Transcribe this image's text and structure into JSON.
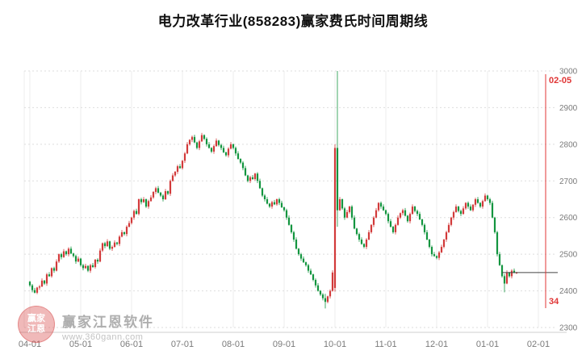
{
  "title": "电力改革行业(858283)赢家费氏时间周期线",
  "watermark": {
    "logo_text_top": "赢家",
    "logo_text_bottom": "江恩",
    "name": "赢家江恩软件",
    "url": "www.360gann.com"
  },
  "chart_data": {
    "type": "candlestick",
    "title": "电力改革行业(858283)赢家费氏时间周期线",
    "x_tick_labels": [
      "04-01",
      "05-01",
      "06-01",
      "07-01",
      "08-01",
      "09-01",
      "10-01",
      "11-01",
      "12-01",
      "01-01",
      "02-01"
    ],
    "x_tick_indices": [
      0,
      21,
      42,
      63,
      84,
      105,
      126,
      147,
      168,
      189,
      210
    ],
    "y_ticks": [
      2300,
      2400,
      2500,
      2600,
      2700,
      2800,
      2900,
      3000
    ],
    "ylim": [
      2300,
      3000
    ],
    "grid": true,
    "legend": "none",
    "first_open": 2425,
    "closes": [
      2415,
      2402,
      2395,
      2409,
      2412,
      2428,
      2420,
      2445,
      2440,
      2462,
      2455,
      2480,
      2500,
      2492,
      2508,
      2500,
      2515,
      2502,
      2495,
      2480,
      2488,
      2470,
      2462,
      2468,
      2455,
      2470,
      2465,
      2485,
      2480,
      2510,
      2530,
      2522,
      2535,
      2515,
      2520,
      2532,
      2528,
      2548,
      2560,
      2555,
      2575,
      2585,
      2600,
      2618,
      2610,
      2650,
      2642,
      2650,
      2630,
      2645,
      2655,
      2670,
      2680,
      2668,
      2660,
      2650,
      2672,
      2665,
      2700,
      2715,
      2725,
      2740,
      2735,
      2755,
      2775,
      2800,
      2812,
      2820,
      2805,
      2790,
      2808,
      2825,
      2815,
      2800,
      2790,
      2780,
      2795,
      2810,
      2798,
      2790,
      2778,
      2770,
      2788,
      2800,
      2790,
      2775,
      2760,
      2750,
      2735,
      2715,
      2700,
      2710,
      2705,
      2720,
      2700,
      2680,
      2660,
      2650,
      2638,
      2630,
      2642,
      2636,
      2650,
      2640,
      2628,
      2620,
      2600,
      2580,
      2560,
      2540,
      2515,
      2500,
      2488,
      2478,
      2470,
      2455,
      2445,
      2430,
      2415,
      2400,
      2390,
      2380,
      2370,
      2385,
      2400,
      2450,
      2790,
      2620,
      2650,
      2625,
      2600,
      2615,
      2630,
      2600,
      2570,
      2555,
      2540,
      2528,
      2520,
      2540,
      2560,
      2580,
      2600,
      2620,
      2640,
      2630,
      2620,
      2610,
      2590,
      2575,
      2560,
      2580,
      2600,
      2612,
      2620,
      2605,
      2590,
      2610,
      2630,
      2618,
      2610,
      2595,
      2580,
      2560,
      2540,
      2520,
      2500,
      2495,
      2490,
      2505,
      2520,
      2540,
      2560,
      2580,
      2600,
      2615,
      2630,
      2618,
      2610,
      2625,
      2640,
      2630,
      2620,
      2635,
      2650,
      2640,
      2630,
      2645,
      2660,
      2650,
      2640,
      2600,
      2560,
      2500,
      2470,
      2440,
      2420,
      2450,
      2440,
      2455,
      2450,
      2450
    ],
    "ohlc_overrides": {
      "122": [
        2380,
        2392,
        2352,
        2370
      ],
      "126": [
        2408,
        2800,
        2398,
        2790
      ],
      "127": [
        2790,
        3000,
        2575,
        2620
      ],
      "196": [
        2440,
        2446,
        2396,
        2420
      ]
    },
    "price_line": {
      "value": 2450,
      "from_index": 195,
      "to_index": 218
    },
    "vline": {
      "index": 213,
      "label_top": "02-05",
      "label_bottom": "34"
    },
    "colors": {
      "up": "#d23a3a",
      "down": "#13953f",
      "grid": "#dedede",
      "vgrid": "#ececec",
      "axis_line": "#cfcfcf",
      "axis_text": "#7a7a7a",
      "annotation": "#e03636",
      "price_line": "#444444"
    }
  }
}
